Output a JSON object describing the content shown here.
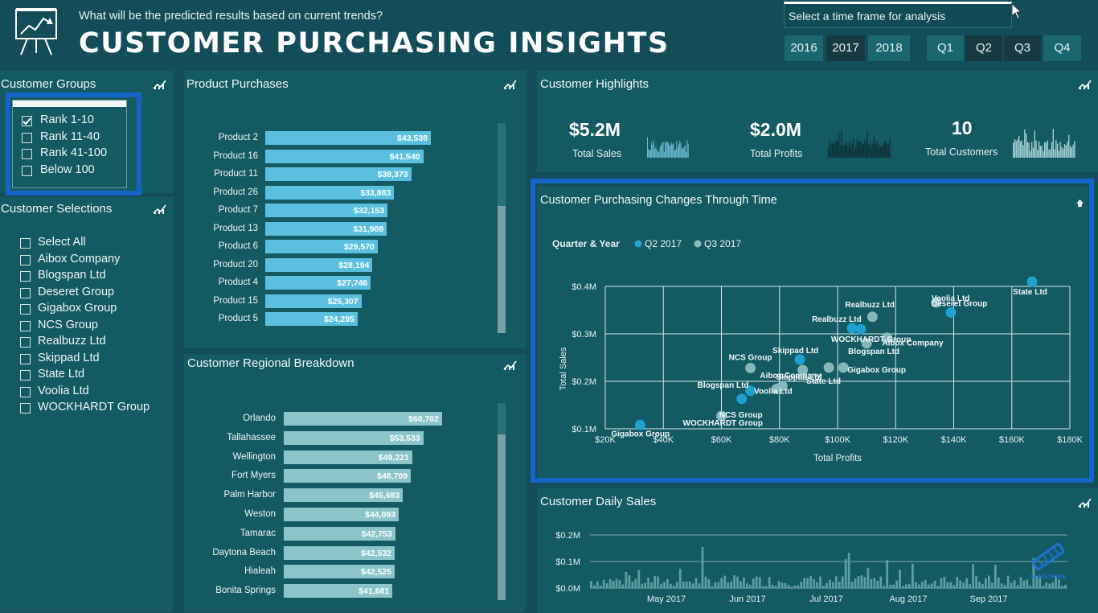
{
  "header": {
    "subtitle": "What will be the predicted results based on current trends?",
    "title": "CUSTOMER PURCHASING INSIGHTS",
    "timeframe_label": "Select a time frame for analysis",
    "years": [
      "2016",
      "2017",
      "2018"
    ],
    "selected_year": "2017",
    "quarters": [
      "Q1",
      "Q2",
      "Q3",
      "Q4"
    ],
    "selected_quarters": [
      "Q2",
      "Q3"
    ]
  },
  "customer_groups": {
    "title": "Customer Groups",
    "items": [
      {
        "label": "Rank 1-10",
        "checked": true
      },
      {
        "label": "Rank 11-40",
        "checked": false
      },
      {
        "label": "Rank 41-100",
        "checked": false
      },
      {
        "label": "Below 100",
        "checked": false
      }
    ]
  },
  "customer_selections": {
    "title": "Customer Selections",
    "items": [
      "Select All",
      "Aibox Company",
      "Blogspan Ltd",
      "Deseret Group",
      "Gigabox Group",
      "NCS Group",
      "Realbuzz Ltd",
      "Skippad Ltd",
      "State Ltd",
      "Voolia Ltd",
      "WOCKHARDT Group"
    ]
  },
  "product_purchases": {
    "title": "Product Purchases",
    "bar_color": "#5bc0e0",
    "items": [
      {
        "label": "Product 2",
        "value": 43538,
        "display": "$43,538"
      },
      {
        "label": "Product 16",
        "value": 41540,
        "display": "$41,540"
      },
      {
        "label": "Product 11",
        "value": 38373,
        "display": "$38,373"
      },
      {
        "label": "Product 26",
        "value": 33883,
        "display": "$33,883"
      },
      {
        "label": "Product 7",
        "value": 32153,
        "display": "$32,153"
      },
      {
        "label": "Product 13",
        "value": 31988,
        "display": "$31,988"
      },
      {
        "label": "Product 6",
        "value": 29570,
        "display": "$29,570"
      },
      {
        "label": "Product 20",
        "value": 28194,
        "display": "$28,194"
      },
      {
        "label": "Product 4",
        "value": 27746,
        "display": "$27,746"
      },
      {
        "label": "Product 15",
        "value": 25307,
        "display": "$25,307"
      },
      {
        "label": "Product 5",
        "value": 24295,
        "display": "$24,295"
      }
    ]
  },
  "regional_breakdown": {
    "title": "Customer Regional Breakdown",
    "bar_color": "#8bc4c9",
    "items": [
      {
        "label": "Orlando",
        "value": 60702,
        "display": "$60,702"
      },
      {
        "label": "Tallahassee",
        "value": 53533,
        "display": "$53,533"
      },
      {
        "label": "Wellington",
        "value": 49221,
        "display": "$49,221"
      },
      {
        "label": "Fort Myers",
        "value": 48709,
        "display": "$48,709"
      },
      {
        "label": "Palm Harbor",
        "value": 45683,
        "display": "$45,683"
      },
      {
        "label": "Weston",
        "value": 44093,
        "display": "$44,093"
      },
      {
        "label": "Tamarac",
        "value": 42753,
        "display": "$42,753"
      },
      {
        "label": "Daytona Beach",
        "value": 42532,
        "display": "$42,532"
      },
      {
        "label": "Hialeah",
        "value": 42525,
        "display": "$42,525"
      },
      {
        "label": "Bonita Springs",
        "value": 41681,
        "display": "$41,681"
      }
    ]
  },
  "highlights": {
    "title": "Customer Highlights",
    "kpis": [
      {
        "value": "$5.2M",
        "label": "Total Sales",
        "spark_color": "#6cc0d6"
      },
      {
        "value": "$2.0M",
        "label": "Total Profits",
        "spark_color": "#0f2f36"
      },
      {
        "value": "10",
        "label": "Total Customers",
        "spark_color": "#a9d3d6"
      }
    ]
  },
  "scatter": {
    "title": "Customer Purchasing Changes Through Time",
    "legend_title": "Quarter & Year",
    "q2_color": "#1fa4d6",
    "q3_color": "#8bbdbd"
  },
  "daily_sales": {
    "title": "Customer Daily Sales",
    "y_ticks": [
      "$0.2M",
      "$0.1M",
      "$0.0M"
    ],
    "months": [
      "May 2017",
      "Jun 2017",
      "Jul 2017",
      "Aug 2017",
      "Sep 2017"
    ],
    "bar_color": "#5f9ea2"
  },
  "watermark": "SUBSCRIBE",
  "chart_data": [
    {
      "type": "bar",
      "title": "Product Purchases",
      "categories": [
        "Product 2",
        "Product 16",
        "Product 11",
        "Product 26",
        "Product 7",
        "Product 13",
        "Product 6",
        "Product 20",
        "Product 4",
        "Product 15",
        "Product 5"
      ],
      "values": [
        43538,
        41540,
        38373,
        33883,
        32153,
        31988,
        29570,
        28194,
        27746,
        25307,
        24295
      ]
    },
    {
      "type": "bar",
      "title": "Customer Regional Breakdown",
      "categories": [
        "Orlando",
        "Tallahassee",
        "Wellington",
        "Fort Myers",
        "Palm Harbor",
        "Weston",
        "Tamarac",
        "Daytona Beach",
        "Hialeah",
        "Bonita Springs"
      ],
      "values": [
        60702,
        53533,
        49221,
        48709,
        45683,
        44093,
        42753,
        42532,
        42525,
        41681
      ]
    },
    {
      "type": "scatter",
      "title": "Customer Purchasing Changes Through Time",
      "xlabel": "Total Profits",
      "ylabel": "Total Sales",
      "xlim": [
        20000,
        180000
      ],
      "ylim": [
        100000,
        400000
      ],
      "x_ticks": [
        "$20K",
        "$40K",
        "$60K",
        "$80K",
        "$100K",
        "$120K",
        "$140K",
        "$160K",
        "$180K"
      ],
      "y_ticks": [
        "$0.1M",
        "$0.2M",
        "$0.3M",
        "$0.4M"
      ],
      "legend": "top-left",
      "grid": true,
      "series": [
        {
          "name": "Q2 2017",
          "points": [
            {
              "label": "State Ltd",
              "x": 167000,
              "y": 410000
            },
            {
              "label": "Deseret Group",
              "x": 139000,
              "y": 345000
            },
            {
              "label": "Realbuzz Ltd",
              "x": 105000,
              "y": 312000
            },
            {
              "label": "WOCKHARDT Group",
              "x": 108000,
              "y": 310000
            },
            {
              "label": "Skippad Ltd",
              "x": 87000,
              "y": 246000
            },
            {
              "label": "Blogspan Ltd",
              "x": 70000,
              "y": 180000
            },
            {
              "label": "Gigabox Group",
              "x": 32000,
              "y": 108000
            },
            {
              "label": "NCS Group",
              "x": 67000,
              "y": 163000
            }
          ]
        },
        {
          "name": "Q3 2017",
          "points": [
            {
              "label": "Voolia Ltd",
              "x": 134000,
              "y": 366000
            },
            {
              "label": "Realbuzz Ltd",
              "x": 112000,
              "y": 336000
            },
            {
              "label": "Aibox Company",
              "x": 117000,
              "y": 292000
            },
            {
              "label": "Blogspan Ltd",
              "x": 110000,
              "y": 280000
            },
            {
              "label": "NCS Group",
              "x": 70000,
              "y": 228000
            },
            {
              "label": "Gigabox Group",
              "x": 102000,
              "y": 229000
            },
            {
              "label": "State Ltd",
              "x": 97000,
              "y": 229000
            },
            {
              "label": "Skippad Ltd",
              "x": 88000,
              "y": 224000
            },
            {
              "label": "Aibox Company",
              "x": 81000,
              "y": 190000
            },
            {
              "label": "Voolia Ltd",
              "x": 79000,
              "y": 184000
            },
            {
              "label": "WOCKHARDT Group",
              "x": 60000,
              "y": 127000
            }
          ]
        }
      ]
    }
  ]
}
